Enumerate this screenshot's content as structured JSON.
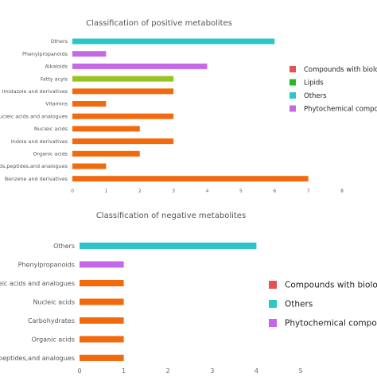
{
  "legend_categories": {
    "compounds": {
      "label": "Compounds with biological roles",
      "color": "#e8504f"
    },
    "lipids": {
      "label": "Lipids",
      "color": "#22bb22"
    },
    "others": {
      "label": "Others",
      "color": "#2dc6c6"
    },
    "phyto": {
      "label": "Phytochemical compounds",
      "color": "#c468e8"
    }
  },
  "chart_data": [
    {
      "type": "bar",
      "orientation": "horizontal",
      "title": "Classification of positive metabolites",
      "categories": [
        "Others",
        "Phenylpropanoids",
        "Alkaloids",
        "Fatty acyls",
        "Imidazole and derivatives",
        "Vitamins",
        "Nucleic acids and analogues",
        "Nucleic acids",
        "Indole and derivatives",
        "Organic acids",
        "Amino acids,peptides,and analogues",
        "Benzene and derivatives"
      ],
      "values": [
        6,
        1,
        4,
        3,
        3,
        1,
        3,
        2,
        3,
        2,
        1,
        7
      ],
      "bar_colors": [
        "#2dc6c6",
        "#c468e8",
        "#c468e8",
        "#99c322",
        "#f26a0d",
        "#f26a0d",
        "#f26a0d",
        "#f26a0d",
        "#f26a0d",
        "#f26a0d",
        "#f26a0d",
        "#f26a0d"
      ],
      "xlim": [
        0,
        8
      ],
      "xticks": [
        0,
        1,
        2,
        3,
        4,
        5,
        6,
        7,
        8
      ],
      "legend": [
        "compounds",
        "lipids",
        "others",
        "phyto"
      ],
      "legend_position": "right",
      "grid": false
    },
    {
      "type": "bar",
      "orientation": "horizontal",
      "title": "Classification of negative metabolites",
      "categories": [
        "Others",
        "Phenylpropanoids",
        "Nucleic acids and analogues",
        "Nucleic acids",
        "Carbohydrates",
        "Organic acids",
        "Amino acids,peptides,and analogues"
      ],
      "values": [
        4,
        1,
        1,
        1,
        1,
        1,
        1
      ],
      "bar_colors": [
        "#2dc6c6",
        "#c468e8",
        "#f26a0d",
        "#f26a0d",
        "#f26a0d",
        "#f26a0d",
        "#f26a0d"
      ],
      "xlim": [
        0,
        5
      ],
      "xticks": [
        0,
        1,
        2,
        3,
        4,
        5
      ],
      "legend": [
        "compounds",
        "others",
        "phyto"
      ],
      "legend_position": "right",
      "grid": false
    }
  ]
}
